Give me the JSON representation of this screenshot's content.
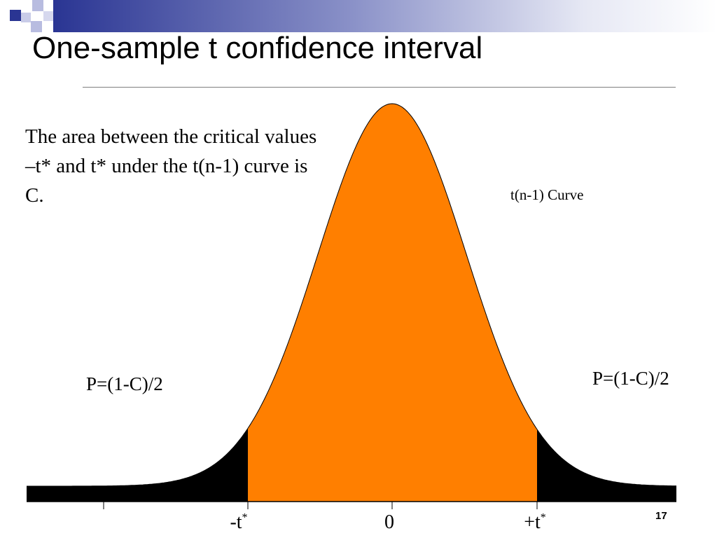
{
  "slide": {
    "title": "One-sample t confidence interval",
    "description": "The area between the critical values –t* and t* under the t(n-1) curve is C.",
    "curve_label": "t(n-1) Curve",
    "left_tail_label": "P=(1-C)/2",
    "right_tail_label": "P=(1-C)/2",
    "page_number": "17"
  },
  "axis": {
    "neg_label": "-t",
    "zero_label": "0",
    "pos_label": "+t",
    "star": "*"
  },
  "colors": {
    "center_fill": "#ff7f00",
    "tail_fill": "#000000",
    "title_bar": "#2a3593",
    "deco_dark": "#2a3593",
    "deco_light": "#b8bce0"
  }
}
